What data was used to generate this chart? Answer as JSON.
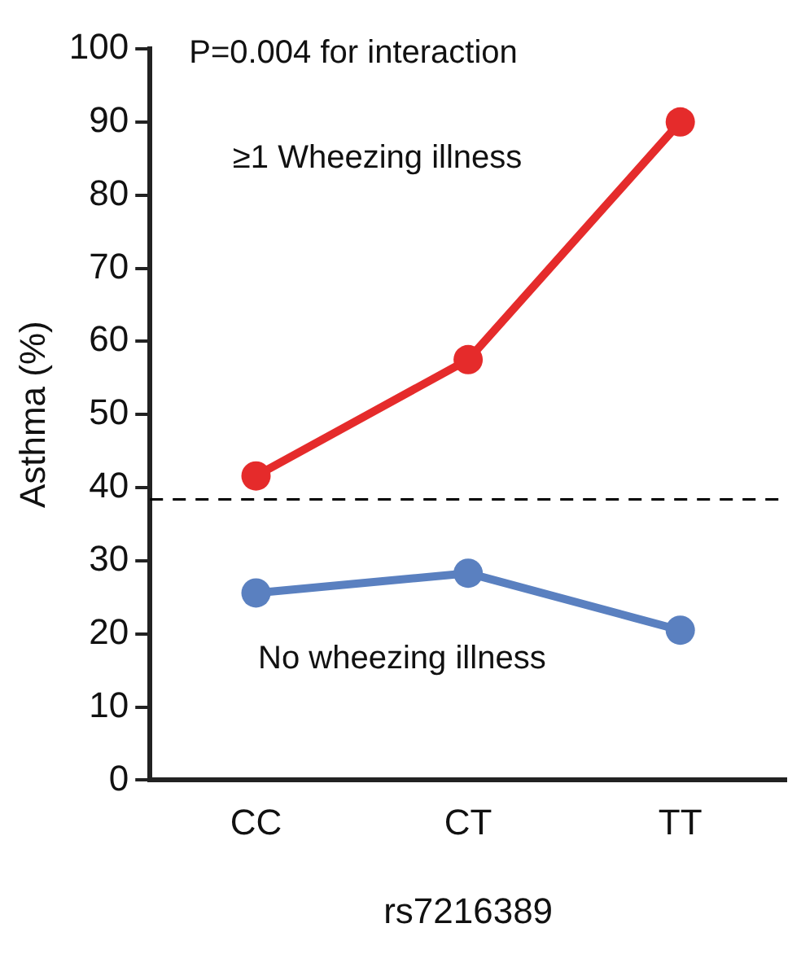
{
  "chart_data": {
    "type": "line",
    "xlabel": "rs7216389",
    "ylabel": "Asthma (%)",
    "categories": [
      "CC",
      "CT",
      "TT"
    ],
    "series": [
      {
        "name": "≥1 Wheezing illness",
        "color": "#e52b2b",
        "values": [
          41.6,
          57.5,
          90
        ]
      },
      {
        "name": "No wheezing illness",
        "color": "#5a80c0",
        "values": [
          25.6,
          28.3,
          20.5
        ]
      }
    ],
    "ylim": [
      0,
      100
    ],
    "yticks": [
      0,
      10,
      20,
      30,
      40,
      50,
      60,
      70,
      80,
      90,
      100
    ],
    "ref_lines": [
      {
        "axis": "y",
        "value": 38.4,
        "line_style": "dashed",
        "color": "#000000"
      }
    ],
    "annotations": [
      "P=0.004 for interaction"
    ],
    "grid": false,
    "legend": false,
    "marker": "circle",
    "line_style": "solid"
  }
}
